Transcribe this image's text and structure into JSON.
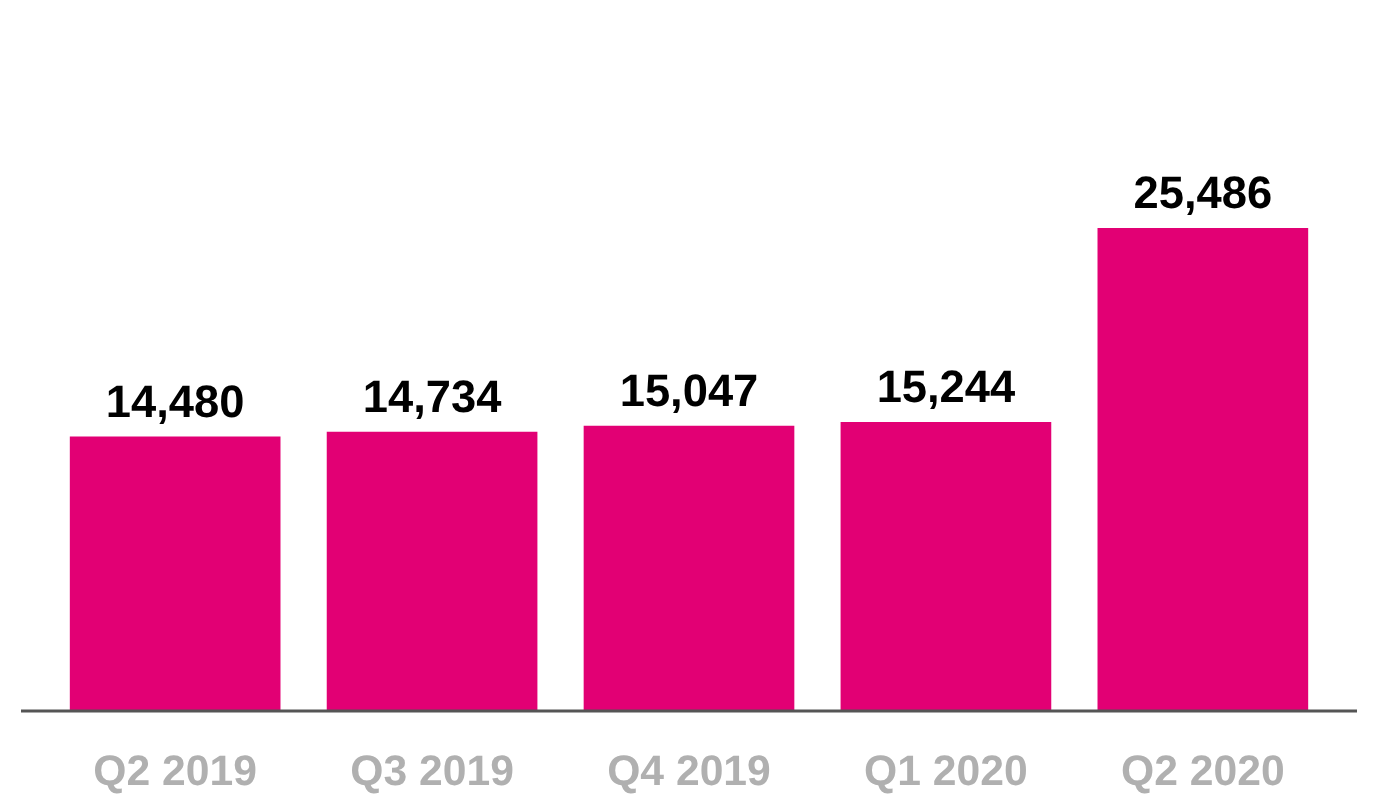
{
  "chart_data": {
    "type": "bar",
    "categories": [
      "Q2 2019",
      "Q3 2019",
      "Q4 2019",
      "Q1 2020",
      "Q2 2020"
    ],
    "values": [
      14480,
      14734,
      15047,
      15244,
      25486
    ],
    "value_labels": [
      "14,480",
      "14,734",
      "15,047",
      "15,244",
      "25,486"
    ],
    "color": "#e20074",
    "grid": false
  }
}
